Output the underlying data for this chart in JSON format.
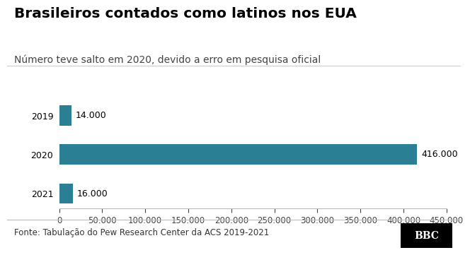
{
  "title": "Brasileiros contados como latinos nos EUA",
  "subtitle": "Número teve salto em 2020, devido a erro em pesquisa oficial",
  "categories": [
    "2021",
    "2020",
    "2019"
  ],
  "values": [
    16000,
    416000,
    14000
  ],
  "bar_labels": [
    "16.000",
    "416.000",
    "14.000"
  ],
  "bar_color": "#2a7f94",
  "xlim": [
    0,
    450000
  ],
  "xticks": [
    0,
    50000,
    100000,
    150000,
    200000,
    250000,
    300000,
    350000,
    400000,
    450000
  ],
  "xtick_labels": [
    "0",
    "50.000",
    "100.000",
    "150.000",
    "200.000",
    "250.000",
    "300.000",
    "350.000",
    "400.000",
    "450.000"
  ],
  "background_color": "#ffffff",
  "title_fontsize": 14.5,
  "subtitle_fontsize": 10,
  "tick_fontsize": 8.5,
  "label_fontsize": 9,
  "footer_text": "Fonte: Tabulação do Pew Research Center da ACS 2019-2021",
  "bbc_text": "BBC",
  "footer_fontsize": 8.5
}
